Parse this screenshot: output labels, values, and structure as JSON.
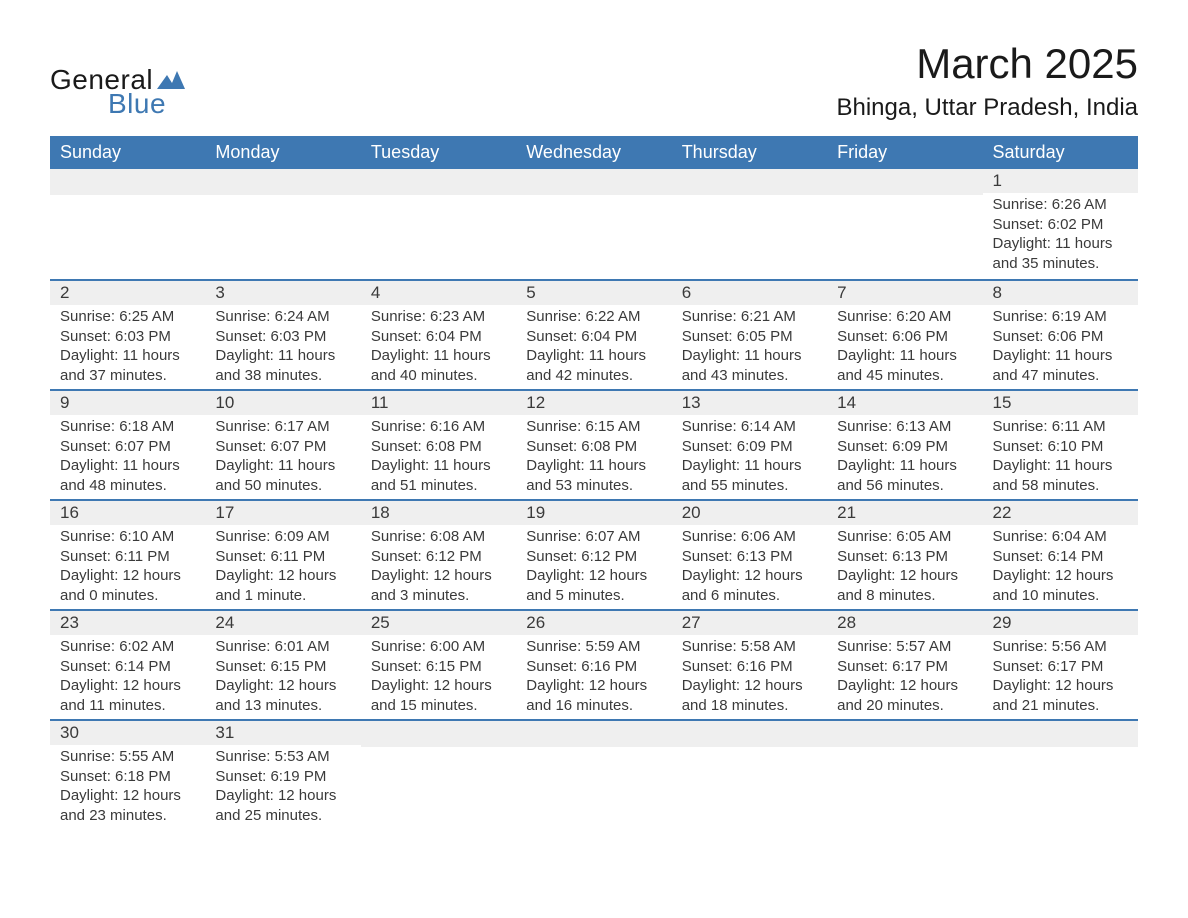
{
  "brand": {
    "main": "General",
    "sub": "Blue",
    "main_color": "#1a1a1a",
    "sub_color": "#3e78b2"
  },
  "title": {
    "month": "March 2025",
    "location": "Bhinga, Uttar Pradesh, India"
  },
  "colors": {
    "header_bg": "#3e78b2",
    "header_fg": "#ffffff",
    "row_stripe": "#efefef",
    "row_border": "#3e78b2",
    "text": "#3a3a3a",
    "background": "#ffffff"
  },
  "weekdays": [
    "Sunday",
    "Monday",
    "Tuesday",
    "Wednesday",
    "Thursday",
    "Friday",
    "Saturday"
  ],
  "weeks": [
    [
      null,
      null,
      null,
      null,
      null,
      null,
      {
        "n": "1",
        "sr": "Sunrise: 6:26 AM",
        "ss": "Sunset: 6:02 PM",
        "d1": "Daylight: 11 hours",
        "d2": "and 35 minutes."
      }
    ],
    [
      {
        "n": "2",
        "sr": "Sunrise: 6:25 AM",
        "ss": "Sunset: 6:03 PM",
        "d1": "Daylight: 11 hours",
        "d2": "and 37 minutes."
      },
      {
        "n": "3",
        "sr": "Sunrise: 6:24 AM",
        "ss": "Sunset: 6:03 PM",
        "d1": "Daylight: 11 hours",
        "d2": "and 38 minutes."
      },
      {
        "n": "4",
        "sr": "Sunrise: 6:23 AM",
        "ss": "Sunset: 6:04 PM",
        "d1": "Daylight: 11 hours",
        "d2": "and 40 minutes."
      },
      {
        "n": "5",
        "sr": "Sunrise: 6:22 AM",
        "ss": "Sunset: 6:04 PM",
        "d1": "Daylight: 11 hours",
        "d2": "and 42 minutes."
      },
      {
        "n": "6",
        "sr": "Sunrise: 6:21 AM",
        "ss": "Sunset: 6:05 PM",
        "d1": "Daylight: 11 hours",
        "d2": "and 43 minutes."
      },
      {
        "n": "7",
        "sr": "Sunrise: 6:20 AM",
        "ss": "Sunset: 6:06 PM",
        "d1": "Daylight: 11 hours",
        "d2": "and 45 minutes."
      },
      {
        "n": "8",
        "sr": "Sunrise: 6:19 AM",
        "ss": "Sunset: 6:06 PM",
        "d1": "Daylight: 11 hours",
        "d2": "and 47 minutes."
      }
    ],
    [
      {
        "n": "9",
        "sr": "Sunrise: 6:18 AM",
        "ss": "Sunset: 6:07 PM",
        "d1": "Daylight: 11 hours",
        "d2": "and 48 minutes."
      },
      {
        "n": "10",
        "sr": "Sunrise: 6:17 AM",
        "ss": "Sunset: 6:07 PM",
        "d1": "Daylight: 11 hours",
        "d2": "and 50 minutes."
      },
      {
        "n": "11",
        "sr": "Sunrise: 6:16 AM",
        "ss": "Sunset: 6:08 PM",
        "d1": "Daylight: 11 hours",
        "d2": "and 51 minutes."
      },
      {
        "n": "12",
        "sr": "Sunrise: 6:15 AM",
        "ss": "Sunset: 6:08 PM",
        "d1": "Daylight: 11 hours",
        "d2": "and 53 minutes."
      },
      {
        "n": "13",
        "sr": "Sunrise: 6:14 AM",
        "ss": "Sunset: 6:09 PM",
        "d1": "Daylight: 11 hours",
        "d2": "and 55 minutes."
      },
      {
        "n": "14",
        "sr": "Sunrise: 6:13 AM",
        "ss": "Sunset: 6:09 PM",
        "d1": "Daylight: 11 hours",
        "d2": "and 56 minutes."
      },
      {
        "n": "15",
        "sr": "Sunrise: 6:11 AM",
        "ss": "Sunset: 6:10 PM",
        "d1": "Daylight: 11 hours",
        "d2": "and 58 minutes."
      }
    ],
    [
      {
        "n": "16",
        "sr": "Sunrise: 6:10 AM",
        "ss": "Sunset: 6:11 PM",
        "d1": "Daylight: 12 hours",
        "d2": "and 0 minutes."
      },
      {
        "n": "17",
        "sr": "Sunrise: 6:09 AM",
        "ss": "Sunset: 6:11 PM",
        "d1": "Daylight: 12 hours",
        "d2": "and 1 minute."
      },
      {
        "n": "18",
        "sr": "Sunrise: 6:08 AM",
        "ss": "Sunset: 6:12 PM",
        "d1": "Daylight: 12 hours",
        "d2": "and 3 minutes."
      },
      {
        "n": "19",
        "sr": "Sunrise: 6:07 AM",
        "ss": "Sunset: 6:12 PM",
        "d1": "Daylight: 12 hours",
        "d2": "and 5 minutes."
      },
      {
        "n": "20",
        "sr": "Sunrise: 6:06 AM",
        "ss": "Sunset: 6:13 PM",
        "d1": "Daylight: 12 hours",
        "d2": "and 6 minutes."
      },
      {
        "n": "21",
        "sr": "Sunrise: 6:05 AM",
        "ss": "Sunset: 6:13 PM",
        "d1": "Daylight: 12 hours",
        "d2": "and 8 minutes."
      },
      {
        "n": "22",
        "sr": "Sunrise: 6:04 AM",
        "ss": "Sunset: 6:14 PM",
        "d1": "Daylight: 12 hours",
        "d2": "and 10 minutes."
      }
    ],
    [
      {
        "n": "23",
        "sr": "Sunrise: 6:02 AM",
        "ss": "Sunset: 6:14 PM",
        "d1": "Daylight: 12 hours",
        "d2": "and 11 minutes."
      },
      {
        "n": "24",
        "sr": "Sunrise: 6:01 AM",
        "ss": "Sunset: 6:15 PM",
        "d1": "Daylight: 12 hours",
        "d2": "and 13 minutes."
      },
      {
        "n": "25",
        "sr": "Sunrise: 6:00 AM",
        "ss": "Sunset: 6:15 PM",
        "d1": "Daylight: 12 hours",
        "d2": "and 15 minutes."
      },
      {
        "n": "26",
        "sr": "Sunrise: 5:59 AM",
        "ss": "Sunset: 6:16 PM",
        "d1": "Daylight: 12 hours",
        "d2": "and 16 minutes."
      },
      {
        "n": "27",
        "sr": "Sunrise: 5:58 AM",
        "ss": "Sunset: 6:16 PM",
        "d1": "Daylight: 12 hours",
        "d2": "and 18 minutes."
      },
      {
        "n": "28",
        "sr": "Sunrise: 5:57 AM",
        "ss": "Sunset: 6:17 PM",
        "d1": "Daylight: 12 hours",
        "d2": "and 20 minutes."
      },
      {
        "n": "29",
        "sr": "Sunrise: 5:56 AM",
        "ss": "Sunset: 6:17 PM",
        "d1": "Daylight: 12 hours",
        "d2": "and 21 minutes."
      }
    ],
    [
      {
        "n": "30",
        "sr": "Sunrise: 5:55 AM",
        "ss": "Sunset: 6:18 PM",
        "d1": "Daylight: 12 hours",
        "d2": "and 23 minutes."
      },
      {
        "n": "31",
        "sr": "Sunrise: 5:53 AM",
        "ss": "Sunset: 6:19 PM",
        "d1": "Daylight: 12 hours",
        "d2": "and 25 minutes."
      },
      null,
      null,
      null,
      null,
      null
    ]
  ]
}
